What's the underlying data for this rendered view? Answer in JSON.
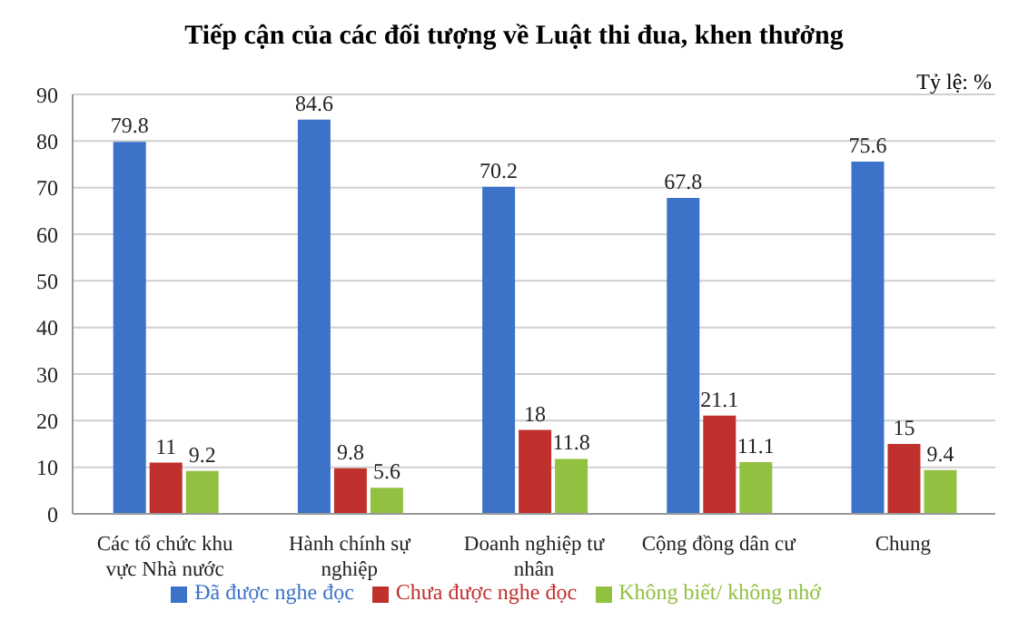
{
  "chart_data": {
    "type": "bar",
    "title": "Tiếp cận của các đối tượng về Luật thi đua, khen thưởng",
    "annotations": [
      "Tỷ lệ: %"
    ],
    "categories": [
      "Các tổ chức khu vực Nhà nước",
      "Hành chính sự nghiệp",
      "Doanh nghiệp tư nhân",
      "Cộng đồng dân cư",
      "Chung"
    ],
    "series": [
      {
        "name": "Đã được nghe đọc",
        "color": "#3c72c8",
        "values": [
          79.8,
          84.6,
          70.2,
          67.8,
          75.6
        ]
      },
      {
        "name": "Chưa được nghe đọc",
        "color": "#c0302c",
        "values": [
          11,
          9.8,
          18,
          21.1,
          15
        ]
      },
      {
        "name": "Không biết/ không nhớ",
        "color": "#92c040",
        "values": [
          9.2,
          5.6,
          11.8,
          11.1,
          9.4
        ]
      }
    ],
    "ylim": [
      0,
      90
    ],
    "yticks": [
      0,
      10,
      20,
      30,
      40,
      50,
      60,
      70,
      80,
      90
    ],
    "grid": "y",
    "legend": "bottom",
    "data_labels": true
  }
}
